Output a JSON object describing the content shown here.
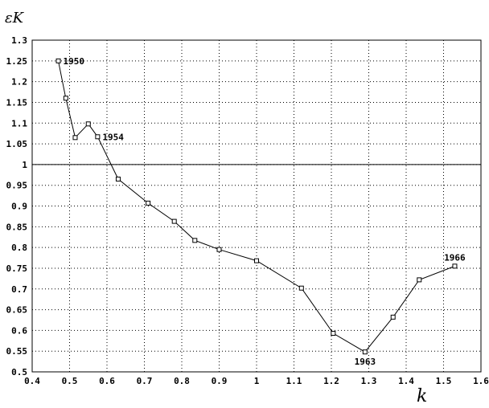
{
  "chart_data": {
    "type": "line",
    "title": "",
    "xlabel": "k",
    "ylabel": "εK",
    "xlim": [
      0.4,
      1.6
    ],
    "ylim": [
      0.5,
      1.3
    ],
    "xticks": [
      0.4,
      0.5,
      0.6,
      0.7,
      0.8,
      0.9,
      1,
      1.1,
      1.2,
      1.3,
      1.4,
      1.5,
      1.6
    ],
    "xtick_labels": [
      "0.4",
      "0.5",
      "0.6",
      "0.7",
      "0.8",
      "0.9",
      "1",
      "1.1",
      "1.2",
      "1.3",
      "1.4",
      "1.5",
      "1.6"
    ],
    "yticks": [
      0.5,
      0.55,
      0.6,
      0.65,
      0.7,
      0.75,
      0.8,
      0.85,
      0.9,
      0.95,
      1,
      1.05,
      1.1,
      1.15,
      1.2,
      1.25,
      1.3
    ],
    "ytick_labels": [
      "0.5",
      "0.55",
      "0.6",
      "0.65",
      "0.7",
      "0.75",
      "0.8",
      "0.85",
      "0.9",
      "0.95",
      "1",
      "1.05",
      "1.1",
      "1.15",
      "1.2",
      "1.25",
      "1.3"
    ],
    "grid": true,
    "reference_line": {
      "y": 1
    },
    "series": [
      {
        "marker": "square",
        "x": [
          0.47,
          0.49,
          0.515,
          0.55,
          0.575,
          0.63,
          0.71,
          0.78,
          0.835,
          0.9,
          1.0,
          1.12,
          1.205,
          1.29,
          1.365,
          1.435,
          1.53
        ],
        "y": [
          1.25,
          1.16,
          1.065,
          1.098,
          1.067,
          0.965,
          0.907,
          0.863,
          0.817,
          0.795,
          0.768,
          0.702,
          0.593,
          0.548,
          0.632,
          0.722,
          0.755
        ]
      }
    ],
    "annotations": [
      {
        "text": "1950",
        "x": 0.47,
        "y": 1.25
      },
      {
        "text": "1954",
        "x": 0.575,
        "y": 1.067
      },
      {
        "text": "1963",
        "x": 1.29,
        "y": 0.548
      },
      {
        "text": "1966",
        "x": 1.53,
        "y": 0.755
      }
    ]
  }
}
